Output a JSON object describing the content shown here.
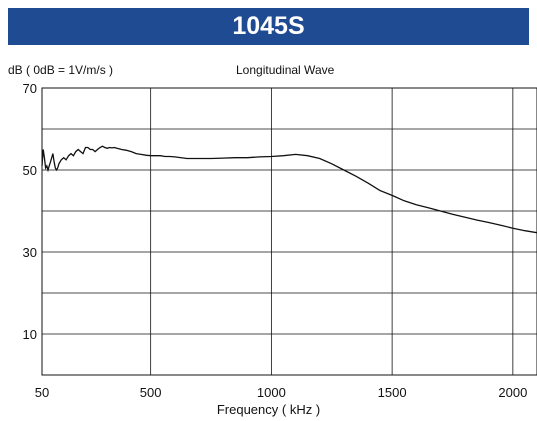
{
  "chart_data": {
    "type": "line",
    "title": "1045S",
    "subtitle": "Longitudinal Wave",
    "ylabel": "dB ( 0dB = 1V/m/s )",
    "xlabel": "Frequency ( kHz )",
    "xlim": [
      50,
      2100
    ],
    "ylim": [
      0,
      70
    ],
    "x_ticks": [
      50,
      500,
      1000,
      1500,
      2000
    ],
    "y_ticks": [
      70,
      50,
      30,
      10
    ],
    "y_grid": [
      60,
      50,
      40,
      30,
      20,
      10
    ],
    "grid": true,
    "series": [
      {
        "color": "#111111",
        "x": [
          50,
          55,
          60,
          65,
          70,
          75,
          80,
          85,
          90,
          95,
          100,
          105,
          110,
          115,
          120,
          130,
          140,
          150,
          160,
          170,
          180,
          190,
          200,
          210,
          220,
          230,
          240,
          250,
          260,
          270,
          280,
          290,
          300,
          310,
          320,
          330,
          340,
          350,
          360,
          380,
          400,
          420,
          440,
          460,
          480,
          500,
          520,
          540,
          560,
          580,
          600,
          650,
          700,
          750,
          800,
          850,
          900,
          950,
          1000,
          1050,
          1100,
          1150,
          1200,
          1250,
          1300,
          1350,
          1400,
          1450,
          1500,
          1550,
          1600,
          1650,
          1700,
          1750,
          1800,
          1850,
          1900,
          1950,
          2000,
          2050,
          2100
        ],
        "values": [
          51,
          55,
          53,
          50.5,
          51,
          50,
          51,
          52,
          53,
          54,
          52,
          50.5,
          50,
          50.5,
          51.5,
          52.5,
          53,
          52.5,
          53.5,
          54,
          53.5,
          54.5,
          55,
          54.5,
          54,
          55.5,
          55.5,
          55,
          55,
          54.5,
          55,
          55.5,
          55.8,
          55.5,
          55.3,
          55.5,
          55.4,
          55.5,
          55.3,
          55,
          54.8,
          54.5,
          54,
          53.8,
          53.6,
          53.5,
          53.5,
          53.5,
          53.3,
          53.3,
          53.2,
          52.8,
          52.8,
          52.8,
          52.9,
          53,
          53,
          53.2,
          53.3,
          53.5,
          53.8,
          53.5,
          52.8,
          51.5,
          50,
          48.5,
          46.8,
          45,
          43.8,
          42.5,
          41.5,
          40.8,
          40,
          39.2,
          38.5,
          37.8,
          37.2,
          36.5,
          35.8,
          35.2,
          34.7
        ]
      }
    ]
  }
}
